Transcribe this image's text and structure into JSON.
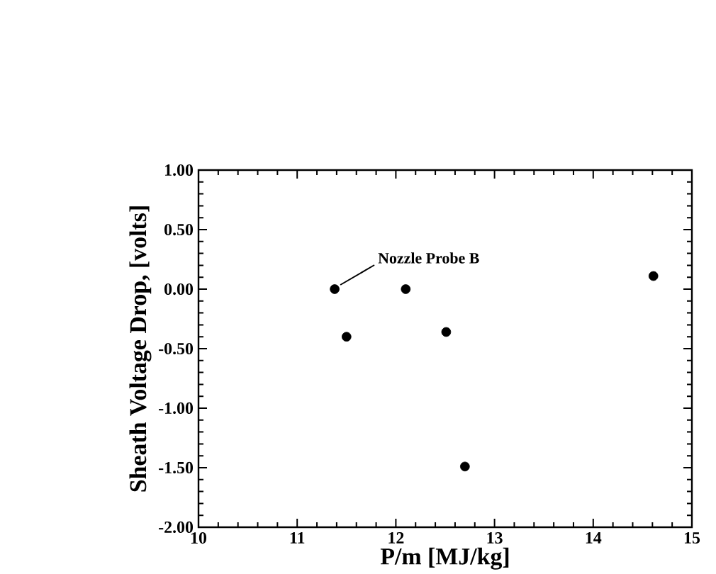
{
  "chart_data": {
    "type": "scatter",
    "xlabel": "P/m    [MJ/kg]",
    "ylabel": "Sheath  Voltage Drop, [volts]",
    "x": [
      11.38,
      11.5,
      12.1,
      12.51,
      12.7,
      14.61
    ],
    "values": [
      0.0,
      -0.4,
      0.0,
      -0.36,
      -1.49,
      0.11
    ],
    "color": "#000000",
    "marker": "circle",
    "xlim": [
      10,
      15
    ],
    "xticks": [
      10,
      11,
      12,
      13,
      14,
      15
    ],
    "ylim": [
      -2,
      1
    ],
    "yticks": [
      {
        "value": -2,
        "label": "-2.00"
      },
      {
        "value": -1.5,
        "label": "-1.50"
      },
      {
        "value": -1,
        "label": "-1.00"
      },
      {
        "value": -0.5,
        "label": "-0.50"
      },
      {
        "value": 0,
        "label": "0.00"
      },
      {
        "value": 0.5,
        "label": "0.50"
      },
      {
        "value": 1,
        "label": "1.00"
      }
    ],
    "annotations": [
      {
        "text": "Nozzle Probe B",
        "x": 11.38,
        "y": 0.0
      }
    ]
  }
}
